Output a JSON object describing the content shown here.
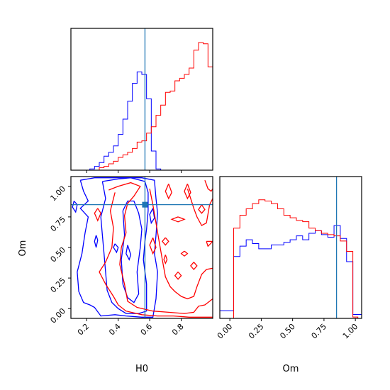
{
  "chart_data": {
    "type": "corner",
    "parameters": [
      "H0",
      "Om"
    ],
    "truths": {
      "H0": 0.57,
      "Om": 0.85
    },
    "truth_color": "#1f77b4",
    "series": [
      {
        "color": "#0000ff"
      },
      {
        "color": "#ff0000"
      }
    ],
    "h0_hist": {
      "range": [
        0.1,
        1.0
      ],
      "bin_edges": [
        0.1,
        0.13,
        0.16,
        0.19,
        0.22,
        0.25,
        0.28,
        0.31,
        0.34,
        0.37,
        0.4,
        0.43,
        0.46,
        0.49,
        0.52,
        0.55,
        0.58,
        0.61,
        0.64,
        0.67,
        0.7,
        0.73,
        0.76,
        0.79,
        0.82,
        0.85,
        0.88,
        0.91,
        0.94,
        0.97,
        1.0
      ],
      "blue": [
        0,
        0,
        0,
        0,
        0.01,
        0.03,
        0.06,
        0.11,
        0.14,
        0.19,
        0.28,
        0.4,
        0.54,
        0.68,
        0.77,
        0.75,
        0.56,
        0.15,
        0.01,
        0,
        0,
        0,
        0,
        0,
        0,
        0,
        0,
        0,
        0,
        0
      ],
      "red": [
        0,
        0,
        0,
        0,
        0,
        0,
        0.02,
        0.03,
        0.05,
        0.07,
        0.1,
        0.12,
        0.14,
        0.17,
        0.22,
        0.23,
        0.29,
        0.34,
        0.43,
        0.51,
        0.61,
        0.62,
        0.7,
        0.72,
        0.75,
        0.8,
        0.94,
        1.0,
        0.99,
        0.81
      ]
    },
    "om_hist": {
      "range": [
        -0.08,
        1.05
      ],
      "bin_edges": [
        -0.08,
        -0.02,
        0.03,
        0.08,
        0.13,
        0.18,
        0.23,
        0.28,
        0.33,
        0.38,
        0.43,
        0.48,
        0.53,
        0.58,
        0.63,
        0.68,
        0.73,
        0.78,
        0.83,
        0.88,
        0.93,
        0.98,
        1.02,
        1.05
      ],
      "blue": [
        0.06,
        0.06,
        0.48,
        0.56,
        0.61,
        0.58,
        0.54,
        0.54,
        0.57,
        0.57,
        0.59,
        0.61,
        0.64,
        0.61,
        0.66,
        0.68,
        0.65,
        0.63,
        0.72,
        0.62,
        0.44,
        0.03,
        0.03
      ],
      "red": [
        0,
        0,
        0.7,
        0.8,
        0.85,
        0.89,
        0.92,
        0.91,
        0.89,
        0.85,
        0.8,
        0.78,
        0.76,
        0.75,
        0.7,
        0.68,
        0.66,
        0.65,
        0.64,
        0.6,
        0.52,
        0.01,
        0
      ],
      "ylim": [
        0,
        1.1
      ]
    },
    "contour_panel": {
      "xlim": [
        0.1,
        1.0
      ],
      "ylim": [
        -0.08,
        1.08
      ],
      "blue_contours": [
        [
          [
            0.16,
            1.05
          ],
          [
            0.18,
            0.96
          ],
          [
            0.21,
            0.88
          ],
          [
            0.16,
            0.82
          ],
          [
            0.21,
            0.75
          ],
          [
            0.19,
            0.62
          ],
          [
            0.17,
            0.45
          ],
          [
            0.14,
            0.3
          ],
          [
            0.15,
            0.14
          ],
          [
            0.18,
            0.05
          ],
          [
            0.22,
            0.03
          ],
          [
            0.25,
            0.01
          ],
          [
            0.29,
            -0.06
          ],
          [
            0.38,
            -0.05
          ],
          [
            0.45,
            -0.06
          ],
          [
            0.55,
            -0.07
          ],
          [
            0.62,
            -0.07
          ],
          [
            0.64,
            0.08
          ],
          [
            0.65,
            0.3
          ],
          [
            0.63,
            0.45
          ],
          [
            0.64,
            0.6
          ],
          [
            0.65,
            0.78
          ],
          [
            0.64,
            0.9
          ],
          [
            0.63,
            1.05
          ],
          [
            0.55,
            1.07
          ],
          [
            0.45,
            1.07
          ],
          [
            0.35,
            1.07
          ],
          [
            0.25,
            1.07
          ],
          [
            0.16,
            1.05
          ]
        ],
        [
          [
            0.3,
            1.04
          ],
          [
            0.32,
            0.9
          ],
          [
            0.29,
            0.75
          ],
          [
            0.3,
            0.6
          ],
          [
            0.31,
            0.45
          ],
          [
            0.32,
            0.3
          ],
          [
            0.33,
            0.15
          ],
          [
            0.36,
            0.05
          ],
          [
            0.4,
            0.0
          ],
          [
            0.45,
            -0.04
          ],
          [
            0.53,
            -0.04
          ],
          [
            0.58,
            -0.02
          ],
          [
            0.58,
            0.2
          ],
          [
            0.56,
            0.4
          ],
          [
            0.57,
            0.55
          ],
          [
            0.58,
            0.65
          ],
          [
            0.59,
            0.8
          ],
          [
            0.59,
            0.95
          ],
          [
            0.57,
            1.04
          ],
          [
            0.48,
            1.07
          ],
          [
            0.4,
            1.06
          ],
          [
            0.3,
            1.04
          ]
        ],
        [
          [
            0.43,
            0.8
          ],
          [
            0.44,
            0.6
          ],
          [
            0.42,
            0.4
          ],
          [
            0.43,
            0.2
          ],
          [
            0.46,
            0.09
          ],
          [
            0.5,
            0.05
          ],
          [
            0.53,
            0.12
          ],
          [
            0.52,
            0.3
          ],
          [
            0.54,
            0.5
          ],
          [
            0.55,
            0.65
          ],
          [
            0.53,
            0.78
          ],
          [
            0.5,
            0.88
          ],
          [
            0.46,
            0.88
          ],
          [
            0.43,
            0.8
          ]
        ],
        [
          [
            0.46,
            0.52
          ],
          [
            0.48,
            0.44
          ],
          [
            0.47,
            0.4
          ],
          [
            0.45,
            0.45
          ],
          [
            0.46,
            0.52
          ]
        ],
        [
          [
            0.38,
            0.53
          ],
          [
            0.4,
            0.5
          ],
          [
            0.39,
            0.46
          ],
          [
            0.37,
            0.5
          ],
          [
            0.38,
            0.53
          ]
        ],
        [
          [
            0.26,
            0.6
          ],
          [
            0.27,
            0.56
          ],
          [
            0.26,
            0.5
          ],
          [
            0.25,
            0.55
          ],
          [
            0.26,
            0.6
          ]
        ],
        [
          [
            0.12,
            0.88
          ],
          [
            0.14,
            0.85
          ],
          [
            0.13,
            0.79
          ],
          [
            0.11,
            0.83
          ],
          [
            0.12,
            0.88
          ]
        ],
        [
          [
            0.62,
            0.82
          ],
          [
            0.63,
            0.74
          ],
          [
            0.61,
            0.7
          ],
          [
            0.6,
            0.77
          ],
          [
            0.62,
            0.82
          ]
        ]
      ],
      "red_contours": [
        [
          [
            0.34,
            0.97
          ],
          [
            0.4,
            1.0
          ],
          [
            0.48,
            1.03
          ],
          [
            0.54,
            1.0
          ],
          [
            0.5,
            0.92
          ],
          [
            0.46,
            0.86
          ],
          [
            0.44,
            0.76
          ],
          [
            0.45,
            0.62
          ],
          [
            0.42,
            0.5
          ],
          [
            0.41,
            0.36
          ],
          [
            0.44,
            0.2
          ],
          [
            0.46,
            0.06
          ],
          [
            0.52,
            0.01
          ],
          [
            0.62,
            -0.02
          ],
          [
            0.72,
            -0.03
          ],
          [
            0.82,
            -0.04
          ],
          [
            0.88,
            -0.03
          ],
          [
            0.91,
            0.02
          ],
          [
            0.95,
            0.03
          ],
          [
            0.97,
            0.05
          ],
          [
            1.0,
            0.08
          ]
        ],
        [
          [
            0.38,
            0.95
          ],
          [
            0.35,
            0.8
          ],
          [
            0.37,
            0.66
          ],
          [
            0.36,
            0.5
          ],
          [
            0.32,
            0.38
          ],
          [
            0.28,
            0.3
          ],
          [
            0.32,
            0.2
          ],
          [
            0.37,
            0.1
          ],
          [
            0.4,
            0.03
          ],
          [
            0.45,
            -0.02
          ],
          [
            0.55,
            -0.05
          ],
          [
            0.65,
            -0.06
          ],
          [
            0.75,
            -0.06
          ],
          [
            0.85,
            -0.07
          ],
          [
            0.95,
            -0.07
          ],
          [
            1.0,
            -0.07
          ]
        ],
        [
          [
            0.6,
            0.98
          ],
          [
            0.62,
            0.85
          ],
          [
            0.64,
            0.7
          ],
          [
            0.66,
            0.55
          ],
          [
            0.68,
            0.4
          ],
          [
            0.7,
            0.26
          ],
          [
            0.73,
            0.18
          ],
          [
            0.76,
            0.14
          ],
          [
            0.8,
            0.1
          ],
          [
            0.84,
            0.08
          ],
          [
            0.88,
            0.1
          ],
          [
            0.9,
            0.18
          ],
          [
            0.93,
            0.28
          ],
          [
            0.96,
            0.32
          ],
          [
            1.0,
            0.33
          ]
        ],
        [
          [
            0.84,
            0.98
          ],
          [
            0.86,
            0.9
          ],
          [
            0.88,
            0.82
          ],
          [
            0.9,
            0.75
          ],
          [
            0.93,
            0.68
          ],
          [
            0.96,
            0.7
          ],
          [
            0.98,
            0.85
          ],
          [
            1.0,
            0.9
          ]
        ],
        [
          [
            0.95,
            1.05
          ],
          [
            0.97,
            0.98
          ],
          [
            0.99,
            0.96
          ],
          [
            1.0,
            0.98
          ]
        ],
        [
          [
            0.72,
            1.02
          ],
          [
            0.74,
            0.95
          ],
          [
            0.72,
            0.9
          ],
          [
            0.7,
            0.96
          ],
          [
            0.72,
            1.02
          ]
        ],
        [
          [
            0.84,
            1.02
          ],
          [
            0.86,
            0.95
          ],
          [
            0.84,
            0.9
          ],
          [
            0.82,
            0.96
          ],
          [
            0.84,
            1.02
          ]
        ],
        [
          [
            0.78,
            0.75
          ],
          [
            0.82,
            0.73
          ],
          [
            0.78,
            0.71
          ],
          [
            0.74,
            0.73
          ],
          [
            0.78,
            0.75
          ]
        ],
        [
          [
            0.82,
            0.47
          ],
          [
            0.84,
            0.45
          ],
          [
            0.82,
            0.43
          ],
          [
            0.8,
            0.45
          ],
          [
            0.82,
            0.47
          ]
        ],
        [
          [
            0.78,
            0.3
          ],
          [
            0.8,
            0.27
          ],
          [
            0.78,
            0.24
          ],
          [
            0.76,
            0.27
          ],
          [
            0.78,
            0.3
          ]
        ],
        [
          [
            0.7,
            0.58
          ],
          [
            0.72,
            0.55
          ],
          [
            0.7,
            0.52
          ],
          [
            0.68,
            0.55
          ],
          [
            0.7,
            0.58
          ]
        ],
        [
          [
            0.88,
            0.38
          ],
          [
            0.9,
            0.35
          ],
          [
            0.88,
            0.32
          ],
          [
            0.86,
            0.35
          ],
          [
            0.88,
            0.38
          ]
        ],
        [
          [
            0.7,
            0.44
          ],
          [
            0.71,
            0.4
          ],
          [
            0.7,
            0.37
          ],
          [
            0.69,
            0.4
          ],
          [
            0.7,
            0.44
          ]
        ],
        [
          [
            0.96,
            0.55
          ],
          [
            1.0,
            0.55
          ],
          [
            0.97,
            0.51
          ],
          [
            0.96,
            0.55
          ]
        ],
        [
          [
            0.27,
            0.82
          ],
          [
            0.29,
            0.78
          ],
          [
            0.27,
            0.72
          ],
          [
            0.25,
            0.78
          ],
          [
            0.27,
            0.82
          ]
        ],
        [
          [
            0.62,
            0.58
          ],
          [
            0.64,
            0.5
          ],
          [
            0.62,
            0.45
          ],
          [
            0.6,
            0.52
          ],
          [
            0.62,
            0.58
          ]
        ],
        [
          [
            0.93,
            0.85
          ],
          [
            0.95,
            0.81
          ],
          [
            0.93,
            0.78
          ],
          [
            0.91,
            0.81
          ],
          [
            0.93,
            0.85
          ]
        ]
      ]
    },
    "axes": {
      "h0": {
        "ticks": [
          0.2,
          0.4,
          0.6,
          0.8
        ],
        "tick_labels": [
          "0.2",
          "0.4",
          "0.6",
          "0.8"
        ],
        "label": "H0"
      },
      "om_x": {
        "ticks": [
          0.0,
          0.25,
          0.5,
          0.75,
          1.0
        ],
        "tick_labels": [
          "0.00",
          "0.25",
          "0.50",
          "0.75",
          "1.00"
        ],
        "label": "Om"
      },
      "om_y": {
        "ticks": [
          0.0,
          0.25,
          0.5,
          0.75,
          1.0
        ],
        "tick_labels": [
          "0.00",
          "0.25",
          "0.50",
          "0.75",
          "1.00"
        ],
        "label": "Om"
      }
    }
  }
}
